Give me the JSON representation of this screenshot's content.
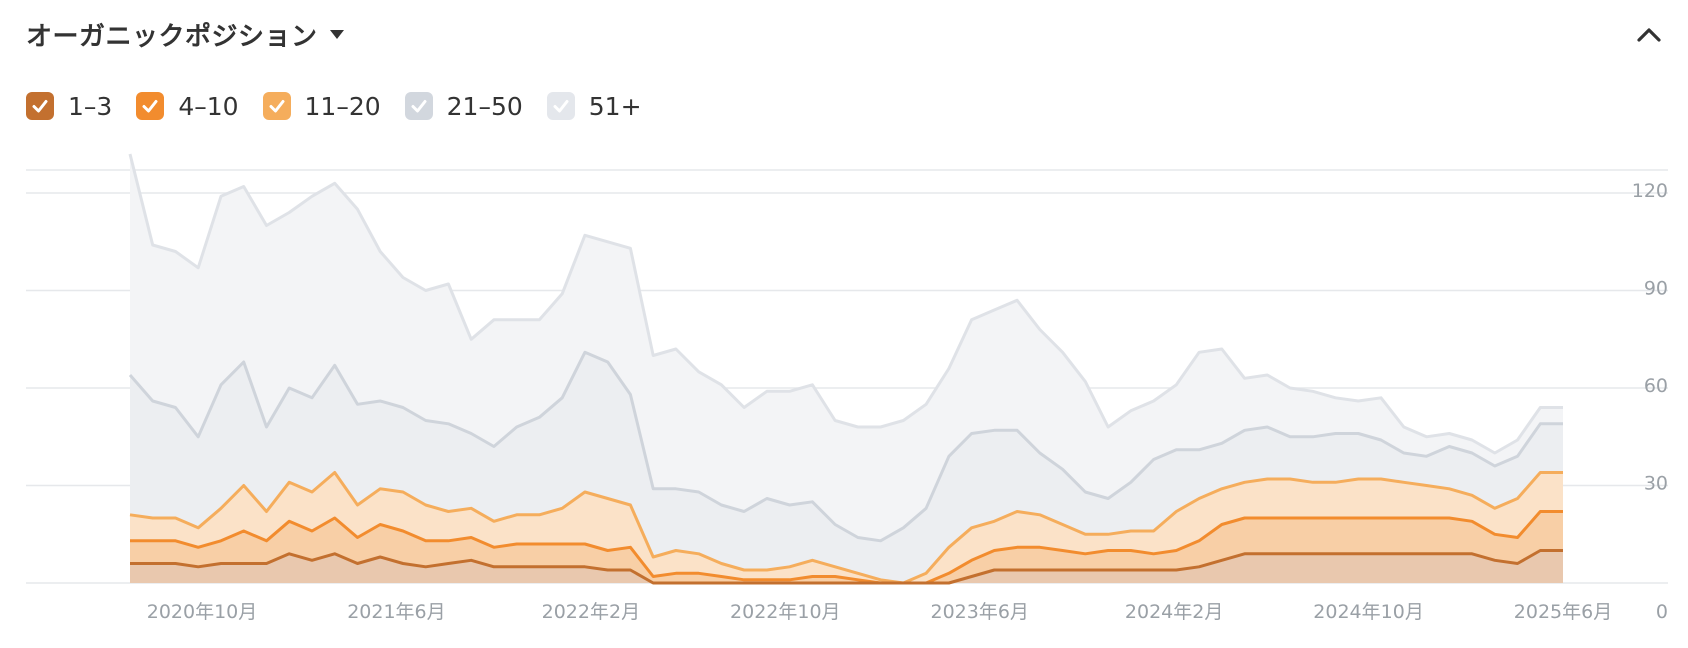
{
  "header": {
    "title": "オーガニックポジション"
  },
  "legend": {
    "items": [
      {
        "label": "1–3",
        "color": "#c3702f",
        "checked": true
      },
      {
        "label": "4–10",
        "color": "#f28c2e",
        "checked": true
      },
      {
        "label": "11–20",
        "color": "#f5ad5c",
        "checked": true
      },
      {
        "label": "21–50",
        "color": "#d2d7de",
        "checked": true
      },
      {
        "label": "51+",
        "color": "#e4e7ec",
        "checked": true
      }
    ]
  },
  "chart_data": {
    "type": "area",
    "stacked": true,
    "x_tick_labels": [
      "2020年10月",
      "2021年6月",
      "2022年2月",
      "2022年10月",
      "2023年6月",
      "2024年2月",
      "2024年10月",
      "2025年6月"
    ],
    "y_tick_labels": [
      "0",
      "30",
      "60",
      "90",
      "120"
    ],
    "ylim": [
      0,
      120
    ],
    "y_axis_position": "right",
    "grid": true,
    "series": [
      {
        "name": "1–3",
        "color": "#c3702f",
        "fill": "#e9c8ae",
        "values": [
          6,
          6,
          6,
          5,
          6,
          6,
          6,
          9,
          7,
          9,
          6,
          8,
          6,
          5,
          6,
          7,
          5,
          5,
          5,
          5,
          5,
          4,
          4,
          0,
          0,
          0,
          0,
          0,
          0,
          0,
          0,
          0,
          0,
          0,
          0,
          0,
          0,
          2,
          4,
          4,
          4,
          4,
          4,
          4,
          4,
          4,
          4,
          5,
          7,
          9,
          9,
          9,
          9,
          9,
          9,
          9,
          9,
          9,
          9,
          9,
          7,
          6,
          10,
          10
        ]
      },
      {
        "name": "4–10",
        "color": "#f28c2e",
        "fill": "#f8cfa6",
        "values": [
          7,
          7,
          7,
          6,
          7,
          10,
          7,
          10,
          9,
          11,
          8,
          10,
          10,
          8,
          7,
          7,
          6,
          7,
          7,
          7,
          7,
          6,
          7,
          2,
          3,
          3,
          2,
          1,
          1,
          1,
          2,
          2,
          1,
          0,
          0,
          0,
          3,
          5,
          6,
          7,
          7,
          6,
          5,
          6,
          6,
          5,
          6,
          8,
          11,
          11,
          11,
          11,
          11,
          11,
          11,
          11,
          11,
          11,
          11,
          10,
          8,
          8,
          12,
          12
        ]
      },
      {
        "name": "11–20",
        "color": "#f5ad5c",
        "fill": "#fbe2c8",
        "values": [
          8,
          7,
          7,
          6,
          10,
          14,
          9,
          12,
          12,
          14,
          10,
          11,
          12,
          11,
          9,
          9,
          8,
          9,
          9,
          11,
          16,
          16,
          13,
          6,
          7,
          6,
          4,
          3,
          3,
          4,
          5,
          3,
          2,
          1,
          0,
          3,
          8,
          10,
          9,
          11,
          10,
          8,
          6,
          5,
          6,
          7,
          12,
          13,
          11,
          11,
          12,
          12,
          11,
          11,
          12,
          12,
          11,
          10,
          9,
          8,
          8,
          12,
          12,
          12
        ]
      },
      {
        "name": "21–50",
        "color": "#cfd4db",
        "fill": "#eceef1",
        "values": [
          43,
          36,
          34,
          28,
          38,
          38,
          26,
          29,
          29,
          33,
          31,
          27,
          26,
          26,
          27,
          23,
          23,
          27,
          30,
          34,
          43,
          42,
          34,
          21,
          19,
          19,
          18,
          18,
          22,
          19,
          18,
          13,
          11,
          12,
          17,
          20,
          28,
          29,
          28,
          25,
          19,
          17,
          13,
          11,
          15,
          22,
          19,
          15,
          14,
          16,
          16,
          13,
          14,
          15,
          14,
          12,
          9,
          9,
          13,
          13,
          13,
          13,
          15,
          15
        ]
      },
      {
        "name": "51+",
        "color": "#dfe2e7",
        "fill": "#f3f4f6",
        "values": [
          68,
          48,
          48,
          52,
          58,
          54,
          62,
          54,
          62,
          56,
          60,
          46,
          40,
          40,
          43,
          29,
          39,
          33,
          30,
          32,
          36,
          37,
          45,
          41,
          43,
          37,
          37,
          32,
          33,
          35,
          36,
          32,
          34,
          35,
          33,
          32,
          27,
          35,
          37,
          40,
          38,
          36,
          34,
          22,
          22,
          18,
          20,
          30,
          29,
          16,
          16,
          15,
          14,
          11,
          10,
          13,
          8,
          6,
          4,
          4,
          4,
          5,
          5,
          5
        ]
      }
    ]
  }
}
